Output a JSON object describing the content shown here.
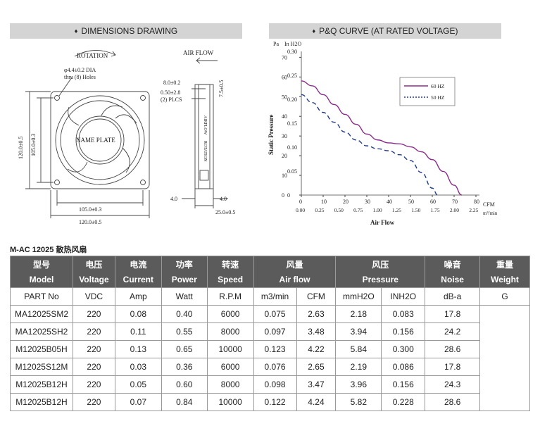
{
  "headers": {
    "dimensions": "DIMENSIONS DRAWING",
    "pq": "P&Q CURVE (AT RATED VOLTAGE)",
    "bullet": "♦"
  },
  "drawing": {
    "rotation": "ROTATION",
    "airflow": "AIR FLOW",
    "hole_line1": "φ4.4±0.2 DIA",
    "hole_line2": "thru (8) Holes",
    "dim_8": "8.0±0.2",
    "dim_050": "0.50±2.8",
    "dim_plcs": "(2) PLCS",
    "dim_75": "7.5±0.5",
    "name_plate": "NAME PLATE",
    "airflow_small": "AIRFLOW",
    "rotation_small": "ROTATION",
    "dim_120v": "120.0±0.5",
    "dim_105v": "105.0±0.3",
    "dim_105h": "105.0±0.3",
    "dim_120h": "120.0±0.5",
    "dim_40a": "4.0",
    "dim_40b": "4.0",
    "dim_25": "25.0±0.5"
  },
  "chart_data": {
    "type": "line",
    "ylabel": "Static Pressure",
    "xlabel": "Air Flow",
    "y_unit_pa": "Pa",
    "y_unit_inh2o": "In H2O",
    "x_unit_cfm": "CFM",
    "x_unit_m3": "m³/min",
    "y_ticks_pa": [
      "70",
      "60",
      "50",
      "40",
      "30",
      "20",
      "10",
      "0"
    ],
    "y_ticks_inh2o": [
      "0.30",
      "0.25",
      "0.20",
      "0.15",
      "0.10",
      "0.05",
      "0"
    ],
    "x_ticks_cfm": [
      "0",
      "10",
      "20",
      "30",
      "40",
      "50",
      "60",
      "70",
      "80"
    ],
    "x_ticks_m3": [
      "0.00",
      "0.25",
      "0.50",
      "0.75",
      "1.00",
      "1.25",
      "1.50",
      "1.75",
      "2.00",
      "2.25"
    ],
    "xlim": [
      0,
      80
    ],
    "ylim": [
      0,
      73
    ],
    "legend_position": "top-right",
    "series": [
      {
        "name": "60 HZ",
        "color": "#8b2a8b",
        "style": "solid",
        "x": [
          0,
          5,
          10,
          15,
          20,
          25,
          30,
          35,
          40,
          45,
          50,
          55,
          60,
          65,
          70,
          73.5
        ],
        "y": [
          58,
          55.5,
          51,
          46,
          41,
          36,
          31,
          28,
          26.5,
          26,
          24.5,
          22,
          18,
          12,
          5,
          0
        ]
      },
      {
        "name": "50 HZ",
        "color": "#1f3a8a",
        "style": "dashed",
        "x": [
          0,
          5,
          10,
          15,
          20,
          25,
          30,
          35,
          40,
          45,
          50,
          55,
          60,
          62.5
        ],
        "y": [
          51,
          47,
          42,
          37,
          32,
          28,
          25,
          23.5,
          22.5,
          20.5,
          17.5,
          11.5,
          3.5,
          0
        ]
      }
    ]
  },
  "table": {
    "section_title": "M-AC 12025 散热风扇",
    "header_cn": [
      "型号",
      "电压",
      "电流",
      "功率",
      "转速",
      "风量",
      "风压",
      "噪音",
      "重量"
    ],
    "header_en": [
      "Model",
      "Voltage",
      "Current",
      "Power",
      "Speed",
      "Air flow",
      "Pressure",
      "Noise",
      "Weight"
    ],
    "units": [
      "PART No",
      "VDC",
      "Amp",
      "Watt",
      "R.P.M",
      "m3/min",
      "CFM",
      "mmH2O",
      "INH2O",
      "dB-a",
      "G"
    ],
    "rows": [
      [
        "MA12025SM2",
        "220",
        "0.08",
        "0.40",
        "6000",
        "0.075",
        "2.63",
        "2.18",
        "0.083",
        "17.8"
      ],
      [
        "MA12025SH2",
        "220",
        "0.11",
        "0.55",
        "8000",
        "0.097",
        "3.48",
        "3.94",
        "0.156",
        "24.2"
      ],
      [
        "M12025B05H",
        "220",
        "0.13",
        "0.65",
        "10000",
        "0.123",
        "4.22",
        "5.84",
        "0.300",
        "28.6"
      ],
      [
        "M12025S12M",
        "220",
        "0.03",
        "0.36",
        "6000",
        "0.076",
        "2.65",
        "2.19",
        "0.086",
        "17.8"
      ],
      [
        "M12025B12H",
        "220",
        "0.05",
        "0.60",
        "8000",
        "0.098",
        "3.47",
        "3.96",
        "0.156",
        "24.3"
      ],
      [
        "M12025B12H",
        "220",
        "0.07",
        "0.84",
        "10000",
        "0.122",
        "4.24",
        "5.82",
        "0.228",
        "28.6"
      ]
    ]
  }
}
